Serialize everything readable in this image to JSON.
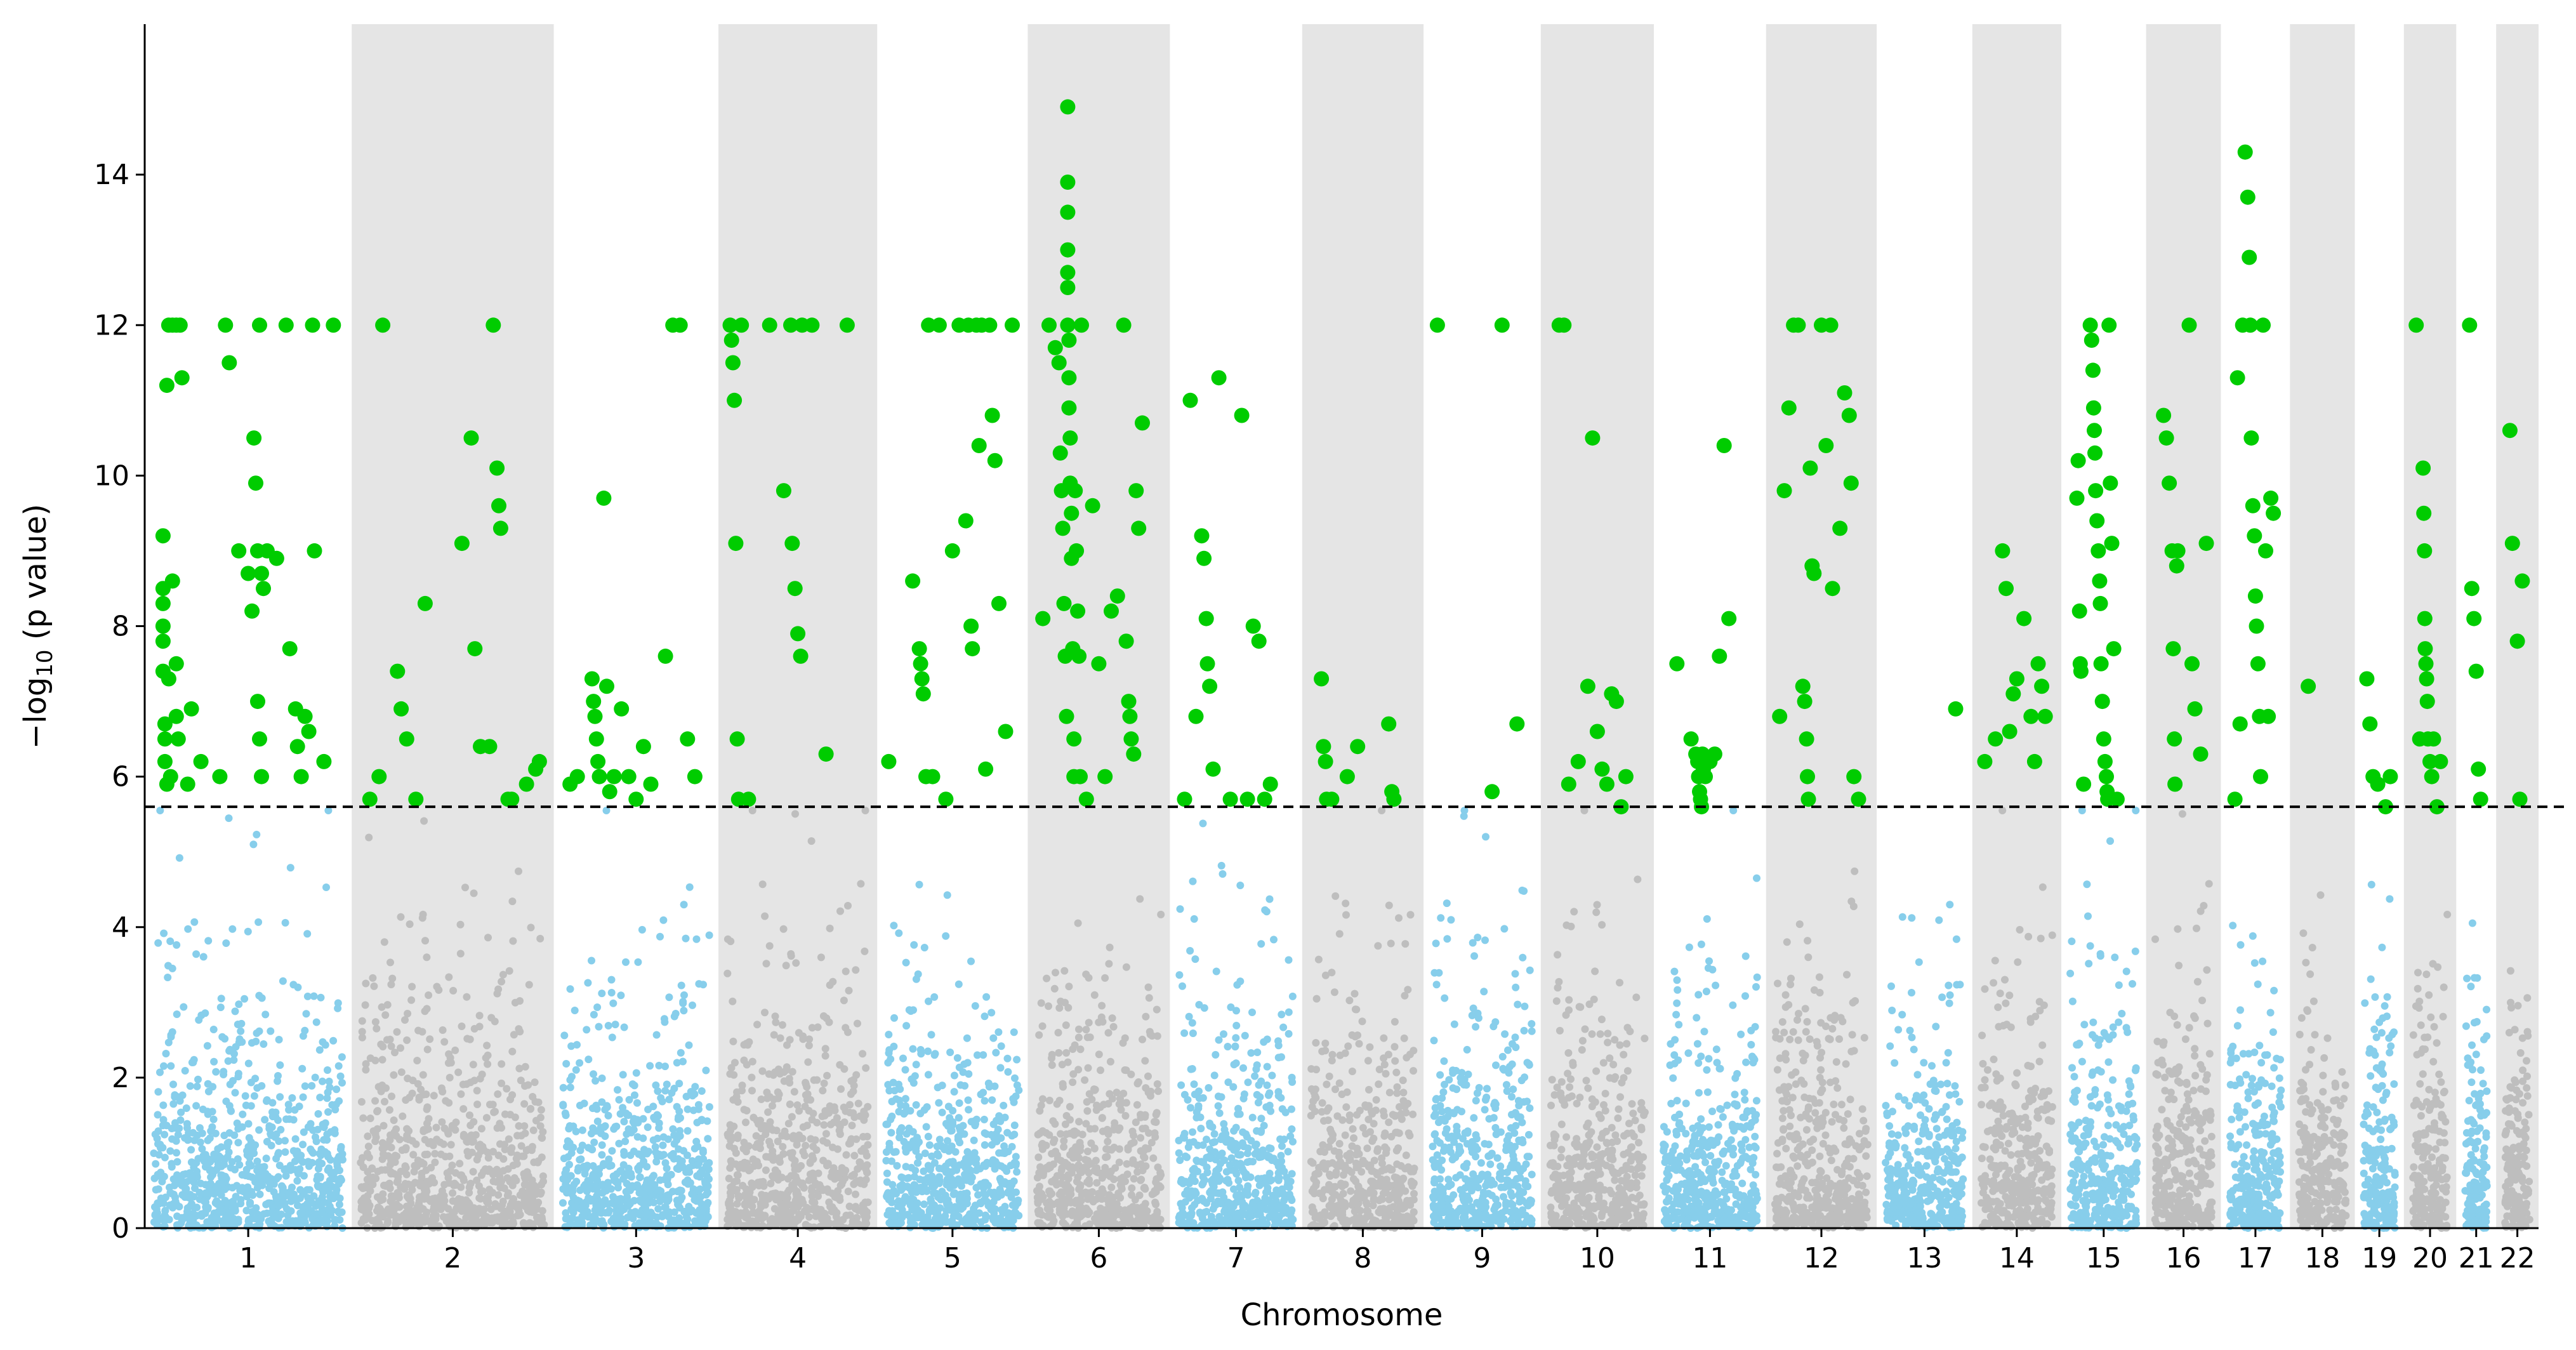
{
  "chart_data": {
    "type": "scatter",
    "title": "",
    "xlabel": "Chromosome",
    "ylabel_prefix": "−log",
    "ylabel_sub": "10",
    "ylabel_suffix": " (p value)",
    "ylim": [
      0,
      16
    ],
    "yticks": [
      0,
      2,
      4,
      6,
      8,
      10,
      12,
      14
    ],
    "threshold": 5.6,
    "grid": false,
    "legend": "none",
    "colors": {
      "odd_chromosome": "#87CEEB",
      "even_chromosome": "#BEBEBE",
      "significant": "#00CC00",
      "band": "#E5E5E5",
      "threshold_line": "#000000"
    },
    "chromosomes": [
      {
        "label": "1",
        "len": 249
      },
      {
        "label": "2",
        "len": 243
      },
      {
        "label": "3",
        "len": 198
      },
      {
        "label": "4",
        "len": 191
      },
      {
        "label": "5",
        "len": 181
      },
      {
        "label": "6",
        "len": 171
      },
      {
        "label": "7",
        "len": 159
      },
      {
        "label": "8",
        "len": 146
      },
      {
        "label": "9",
        "len": 141
      },
      {
        "label": "10",
        "len": 136
      },
      {
        "label": "11",
        "len": 135
      },
      {
        "label": "12",
        "len": 133
      },
      {
        "label": "13",
        "len": 115
      },
      {
        "label": "14",
        "len": 107
      },
      {
        "label": "15",
        "len": 102
      },
      {
        "label": "16",
        "len": 90
      },
      {
        "label": "17",
        "len": 83
      },
      {
        "label": "18",
        "len": 78
      },
      {
        "label": "19",
        "len": 59
      },
      {
        "label": "20",
        "len": 63
      },
      {
        "label": "21",
        "len": 48
      },
      {
        "label": "22",
        "len": 51
      }
    ],
    "significant_points": [
      {
        "chr": "1",
        "pos": [
          0.05,
          0.05,
          0.05,
          0.05,
          0.05,
          0.05,
          0.06,
          0.06,
          0.06,
          0.07,
          0.07,
          0.08,
          0.08,
          0.09,
          0.1,
          0.1,
          0.12,
          0.12,
          0.12,
          0.13,
          0.14,
          0.15,
          0.18,
          0.2,
          0.25,
          0.35,
          0.38,
          0.4,
          0.45,
          0.5,
          0.52,
          0.53,
          0.54,
          0.55,
          0.55,
          0.56,
          0.56,
          0.57,
          0.57,
          0.58,
          0.6,
          0.65,
          0.7,
          0.72,
          0.75,
          0.76,
          0.78,
          0.8,
          0.82,
          0.84,
          0.85,
          0.9,
          0.95
        ],
        "y": [
          9.2,
          8.5,
          8.3,
          8.0,
          7.8,
          7.4,
          6.7,
          6.5,
          6.2,
          5.9,
          11.2,
          12.0,
          7.3,
          6.0,
          12.0,
          8.6,
          12.0,
          7.5,
          6.8,
          6.5,
          12.0,
          11.3,
          5.9,
          6.9,
          6.2,
          6.0,
          12.0,
          11.5,
          9.0,
          8.7,
          8.2,
          10.5,
          9.9,
          9.0,
          7.0,
          12.0,
          6.5,
          6.0,
          8.7,
          8.5,
          9.0,
          8.9,
          12.0,
          7.7,
          6.9,
          6.4,
          6.0,
          6.8,
          6.6,
          12.0,
          9.0,
          6.2,
          12.0
        ]
      },
      {
        "chr": "2",
        "pos": [
          0.05,
          0.1,
          0.12,
          0.2,
          0.22,
          0.25,
          0.3,
          0.35,
          0.55,
          0.6,
          0.62,
          0.65,
          0.7,
          0.72,
          0.74,
          0.75,
          0.76,
          0.8,
          0.82,
          0.9,
          0.95,
          0.97
        ],
        "y": [
          5.7,
          6.0,
          12.0,
          7.4,
          6.9,
          6.5,
          5.7,
          8.3,
          9.1,
          10.5,
          7.7,
          6.4,
          6.4,
          12.0,
          10.1,
          9.6,
          9.3,
          5.7,
          5.7,
          5.9,
          6.1,
          6.2
        ]
      },
      {
        "chr": "3",
        "pos": [
          0.05,
          0.1,
          0.2,
          0.21,
          0.22,
          0.23,
          0.24,
          0.25,
          0.28,
          0.3,
          0.32,
          0.35,
          0.4,
          0.45,
          0.5,
          0.55,
          0.6,
          0.7,
          0.75,
          0.8,
          0.85,
          0.9
        ],
        "y": [
          5.9,
          6.0,
          7.3,
          7.0,
          6.8,
          6.5,
          6.2,
          6.0,
          9.7,
          7.2,
          5.8,
          6.0,
          6.9,
          6.0,
          5.7,
          6.4,
          5.9,
          7.6,
          12.0,
          12.0,
          6.5,
          6.0
        ]
      },
      {
        "chr": "4",
        "pos": [
          0.02,
          0.03,
          0.04,
          0.05,
          0.06,
          0.07,
          0.08,
          0.1,
          0.15,
          0.3,
          0.4,
          0.45,
          0.46,
          0.48,
          0.5,
          0.52,
          0.53,
          0.6,
          0.7,
          0.85
        ],
        "y": [
          12.0,
          11.8,
          11.5,
          11.0,
          9.1,
          6.5,
          5.7,
          12.0,
          5.7,
          12.0,
          9.8,
          12.0,
          9.1,
          8.5,
          7.9,
          7.6,
          12.0,
          12.0,
          6.3,
          12.0
        ]
      },
      {
        "chr": "5",
        "pos": [
          0.02,
          0.2,
          0.25,
          0.26,
          0.27,
          0.28,
          0.3,
          0.32,
          0.35,
          0.4,
          0.45,
          0.5,
          0.55,
          0.6,
          0.62,
          0.64,
          0.65,
          0.68,
          0.7,
          0.72,
          0.75,
          0.78,
          0.8,
          0.82,
          0.85,
          0.9,
          0.95
        ],
        "y": [
          6.2,
          8.6,
          7.7,
          7.5,
          7.3,
          7.1,
          6.0,
          12.0,
          6.0,
          12.0,
          5.7,
          9.0,
          12.0,
          9.4,
          12.0,
          8.0,
          7.7,
          12.0,
          10.4,
          12.0,
          6.1,
          12.0,
          10.8,
          10.2,
          8.3,
          6.6,
          12.0
        ]
      },
      {
        "chr": "6",
        "pos": [
          0.05,
          0.1,
          0.15,
          0.18,
          0.19,
          0.2,
          0.21,
          0.22,
          0.23,
          0.24,
          0.25,
          0.25,
          0.25,
          0.25,
          0.25,
          0.25,
          0.25,
          0.26,
          0.26,
          0.26,
          0.27,
          0.27,
          0.28,
          0.28,
          0.29,
          0.3,
          0.3,
          0.31,
          0.32,
          0.33,
          0.34,
          0.35,
          0.36,
          0.4,
          0.45,
          0.5,
          0.55,
          0.6,
          0.65,
          0.7,
          0.72,
          0.74,
          0.75,
          0.76,
          0.78,
          0.8,
          0.82,
          0.85
        ],
        "y": [
          8.1,
          12.0,
          11.7,
          11.5,
          10.3,
          9.8,
          9.3,
          8.3,
          7.6,
          6.8,
          14.9,
          13.9,
          13.5,
          13.0,
          12.7,
          12.5,
          12.0,
          11.8,
          11.3,
          10.9,
          10.5,
          9.9,
          9.5,
          8.9,
          7.7,
          6.5,
          6.0,
          9.8,
          9.0,
          8.2,
          7.6,
          6.0,
          12.0,
          5.7,
          9.6,
          7.5,
          6.0,
          8.2,
          8.4,
          12.0,
          7.8,
          7.0,
          6.8,
          6.5,
          6.3,
          9.8,
          9.3,
          10.7
        ]
      },
      {
        "chr": "7",
        "pos": [
          0.05,
          0.1,
          0.15,
          0.2,
          0.22,
          0.24,
          0.25,
          0.27,
          0.3,
          0.35,
          0.45,
          0.55,
          0.6,
          0.65,
          0.7,
          0.75,
          0.8
        ],
        "y": [
          5.7,
          11.0,
          6.8,
          9.2,
          8.9,
          8.1,
          7.5,
          7.2,
          6.1,
          11.3,
          5.7,
          10.8,
          5.7,
          8.0,
          7.8,
          5.7,
          5.9
        ]
      },
      {
        "chr": "8",
        "pos": [
          0.1,
          0.12,
          0.14,
          0.15,
          0.2,
          0.35,
          0.45,
          0.75,
          0.78,
          0.8
        ],
        "y": [
          7.3,
          6.4,
          6.2,
          5.7,
          5.7,
          6.0,
          6.4,
          6.7,
          5.8,
          5.7
        ]
      },
      {
        "chr": "9",
        "pos": [
          0.05,
          0.6,
          0.7,
          0.85
        ],
        "y": [
          12.0,
          5.8,
          12.0,
          6.7
        ]
      },
      {
        "chr": "10",
        "pos": [
          0.1,
          0.15,
          0.2,
          0.3,
          0.4,
          0.45,
          0.5,
          0.55,
          0.6,
          0.65,
          0.7,
          0.75,
          0.8
        ],
        "y": [
          12.0,
          12.0,
          5.9,
          6.2,
          7.2,
          10.5,
          6.6,
          6.1,
          5.9,
          7.1,
          7.0,
          5.6,
          6.0
        ]
      },
      {
        "chr": "11",
        "pos": [
          0.15,
          0.3,
          0.35,
          0.37,
          0.38,
          0.39,
          0.4,
          0.41,
          0.42,
          0.43,
          0.45,
          0.5,
          0.55,
          0.6,
          0.65,
          0.7
        ],
        "y": [
          7.5,
          6.5,
          6.3,
          6.2,
          6.0,
          5.8,
          5.7,
          5.6,
          6.3,
          6.1,
          6.0,
          6.2,
          6.3,
          7.6,
          10.4,
          8.1
        ]
      },
      {
        "chr": "12",
        "pos": [
          0.05,
          0.1,
          0.15,
          0.2,
          0.25,
          0.3,
          0.32,
          0.34,
          0.35,
          0.36,
          0.38,
          0.4,
          0.42,
          0.5,
          0.55,
          0.6,
          0.62,
          0.7,
          0.75,
          0.8,
          0.82,
          0.85,
          0.9
        ],
        "y": [
          6.8,
          9.8,
          10.9,
          12.0,
          12.0,
          7.2,
          7.0,
          6.5,
          6.0,
          5.7,
          10.1,
          8.8,
          8.7,
          12.0,
          10.4,
          12.0,
          8.5,
          9.3,
          11.1,
          10.8,
          9.9,
          6.0,
          5.7
        ]
      },
      {
        "chr": "13",
        "pos": [
          0.9
        ],
        "y": [
          6.9
        ]
      },
      {
        "chr": "14",
        "pos": [
          0.05,
          0.2,
          0.3,
          0.35,
          0.4,
          0.45,
          0.5,
          0.6,
          0.7,
          0.75,
          0.8,
          0.85,
          0.9
        ],
        "y": [
          6.2,
          6.5,
          9.0,
          8.5,
          6.6,
          7.1,
          7.3,
          8.1,
          6.8,
          6.2,
          7.5,
          7.2,
          6.8
        ]
      },
      {
        "chr": "15",
        "pos": [
          0.1,
          0.12,
          0.14,
          0.15,
          0.16,
          0.2,
          0.3,
          0.32,
          0.34,
          0.35,
          0.36,
          0.37,
          0.38,
          0.4,
          0.42,
          0.44,
          0.45,
          0.46,
          0.48,
          0.5,
          0.52,
          0.54,
          0.55,
          0.56,
          0.58,
          0.6,
          0.62,
          0.65,
          0.7
        ],
        "y": [
          9.7,
          10.2,
          8.2,
          7.5,
          7.4,
          5.9,
          12.0,
          11.8,
          11.4,
          10.9,
          10.6,
          10.3,
          9.8,
          9.4,
          9.0,
          8.6,
          8.3,
          7.5,
          7.0,
          6.5,
          6.2,
          6.0,
          5.8,
          5.7,
          12.0,
          9.9,
          9.1,
          7.7,
          5.7
        ]
      },
      {
        "chr": "16",
        "pos": [
          0.15,
          0.2,
          0.25,
          0.3,
          0.32,
          0.34,
          0.35,
          0.38,
          0.4,
          0.6,
          0.65,
          0.7,
          0.8,
          0.9
        ],
        "y": [
          10.8,
          10.5,
          9.9,
          9.0,
          7.7,
          6.5,
          5.9,
          8.8,
          9.0,
          12.0,
          7.5,
          6.9,
          6.3,
          9.1
        ]
      },
      {
        "chr": "17",
        "pos": [
          0.1,
          0.15,
          0.2,
          0.25,
          0.3,
          0.35,
          0.38,
          0.4,
          0.42,
          0.45,
          0.48,
          0.5,
          0.52,
          0.55,
          0.58,
          0.6,
          0.65,
          0.7,
          0.75,
          0.8,
          0.85
        ],
        "y": [
          5.7,
          11.3,
          6.7,
          12.0,
          14.3,
          13.7,
          12.9,
          12.0,
          10.5,
          9.6,
          9.2,
          8.4,
          8.0,
          7.5,
          6.8,
          6.0,
          12.0,
          9.0,
          6.8,
          9.7,
          9.5
        ]
      },
      {
        "chr": "18",
        "pos": [
          0.2
        ],
        "y": [
          7.2
        ]
      },
      {
        "chr": "19",
        "pos": [
          0.1,
          0.2,
          0.3,
          0.45,
          0.7,
          0.85
        ],
        "y": [
          7.3,
          6.7,
          6.0,
          5.9,
          5.6,
          6.0
        ]
      },
      {
        "chr": "20",
        "pos": [
          0.1,
          0.2,
          0.3,
          0.32,
          0.34,
          0.35,
          0.36,
          0.38,
          0.4,
          0.42,
          0.44,
          0.5,
          0.55,
          0.6,
          0.7,
          0.8
        ],
        "y": [
          12.0,
          6.5,
          10.1,
          9.5,
          9.0,
          8.1,
          7.7,
          7.5,
          7.3,
          7.0,
          6.5,
          6.2,
          6.0,
          6.5,
          5.6,
          6.2
        ]
      },
      {
        "chr": "21",
        "pos": [
          0.2,
          0.3,
          0.4,
          0.5,
          0.6,
          0.7
        ],
        "y": [
          12.0,
          8.5,
          8.1,
          7.4,
          6.1,
          5.7
        ]
      },
      {
        "chr": "22",
        "pos": [
          0.2,
          0.3,
          0.5,
          0.6,
          0.7
        ],
        "y": [
          10.6,
          9.1,
          7.8,
          5.7,
          8.6
        ]
      }
    ]
  }
}
